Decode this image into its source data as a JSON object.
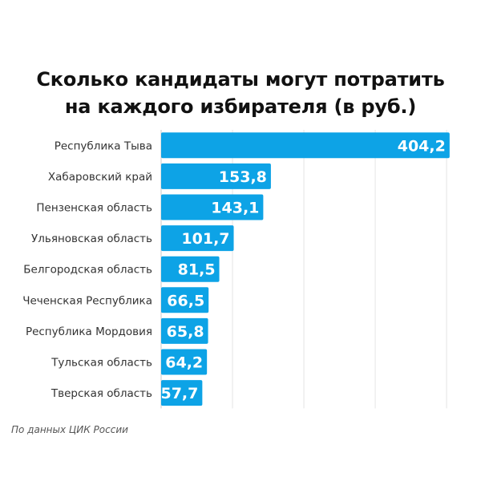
{
  "chart_data": {
    "type": "bar",
    "orientation": "horizontal",
    "title_line1": "Сколько кандидаты могут потратить",
    "title_line2": "на каждого избирателя (в руб.)",
    "categories": [
      "Республика Тыва",
      "Хабаровский край",
      "Пензенская область",
      "Ульяновская область",
      "Белгородская область",
      "Чеченская Республика",
      "Республика Мордовия",
      "Тульская область",
      "Тверская область"
    ],
    "values": [
      404.2,
      153.8,
      143.1,
      101.7,
      81.5,
      66.5,
      65.8,
      64.2,
      57.7
    ],
    "value_labels": [
      "404,2",
      "153,8",
      "143,1",
      "101,7",
      "81,5",
      "66,5",
      "65,8",
      "64,2",
      "57,7"
    ],
    "xlim": [
      0,
      410
    ],
    "grid": true,
    "bar_color": "#0da3e6",
    "label_color": "#ffffff"
  },
  "source": "По данных ЦИК России"
}
